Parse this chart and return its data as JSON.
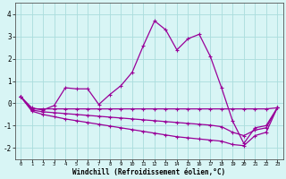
{
  "xlabel": "Windchill (Refroidissement éolien,°C)",
  "background_color": "#d8f5f5",
  "grid_color": "#aadddd",
  "line_color": "#990099",
  "x_hours": [
    0,
    1,
    2,
    3,
    4,
    5,
    6,
    7,
    8,
    9,
    10,
    11,
    12,
    13,
    14,
    15,
    16,
    17,
    18,
    19,
    20,
    21,
    22,
    23
  ],
  "main_line": [
    0.3,
    -0.2,
    -0.3,
    -0.1,
    0.7,
    0.65,
    0.65,
    -0.05,
    0.4,
    0.8,
    1.4,
    2.6,
    3.7,
    3.3,
    2.4,
    2.9,
    3.1,
    2.1,
    0.7,
    -0.8,
    -1.8,
    -1.1,
    -1.0,
    -0.2
  ],
  "flat_line": [
    0.3,
    -0.25,
    -0.25,
    -0.25,
    -0.25,
    -0.25,
    -0.25,
    -0.25,
    -0.25,
    -0.25,
    -0.25,
    -0.25,
    -0.25,
    -0.25,
    -0.25,
    -0.25,
    -0.25,
    -0.25,
    -0.25,
    -0.25,
    -0.25,
    -0.25,
    -0.25,
    -0.2
  ],
  "mid_line": [
    0.3,
    -0.3,
    -0.38,
    -0.42,
    -0.46,
    -0.5,
    -0.54,
    -0.58,
    -0.62,
    -0.66,
    -0.7,
    -0.74,
    -0.78,
    -0.82,
    -0.86,
    -0.9,
    -0.94,
    -0.98,
    -1.05,
    -1.3,
    -1.45,
    -1.2,
    -1.1,
    -0.2
  ],
  "lower_line": [
    0.3,
    -0.35,
    -0.5,
    -0.6,
    -0.7,
    -0.78,
    -0.86,
    -0.94,
    -1.02,
    -1.1,
    -1.18,
    -1.26,
    -1.34,
    -1.42,
    -1.5,
    -1.55,
    -1.6,
    -1.65,
    -1.7,
    -1.85,
    -1.9,
    -1.45,
    -1.3,
    -0.2
  ],
  "ylim": [
    -2.5,
    4.5
  ],
  "yticks": [
    -2,
    -1,
    0,
    1,
    2,
    3,
    4
  ]
}
